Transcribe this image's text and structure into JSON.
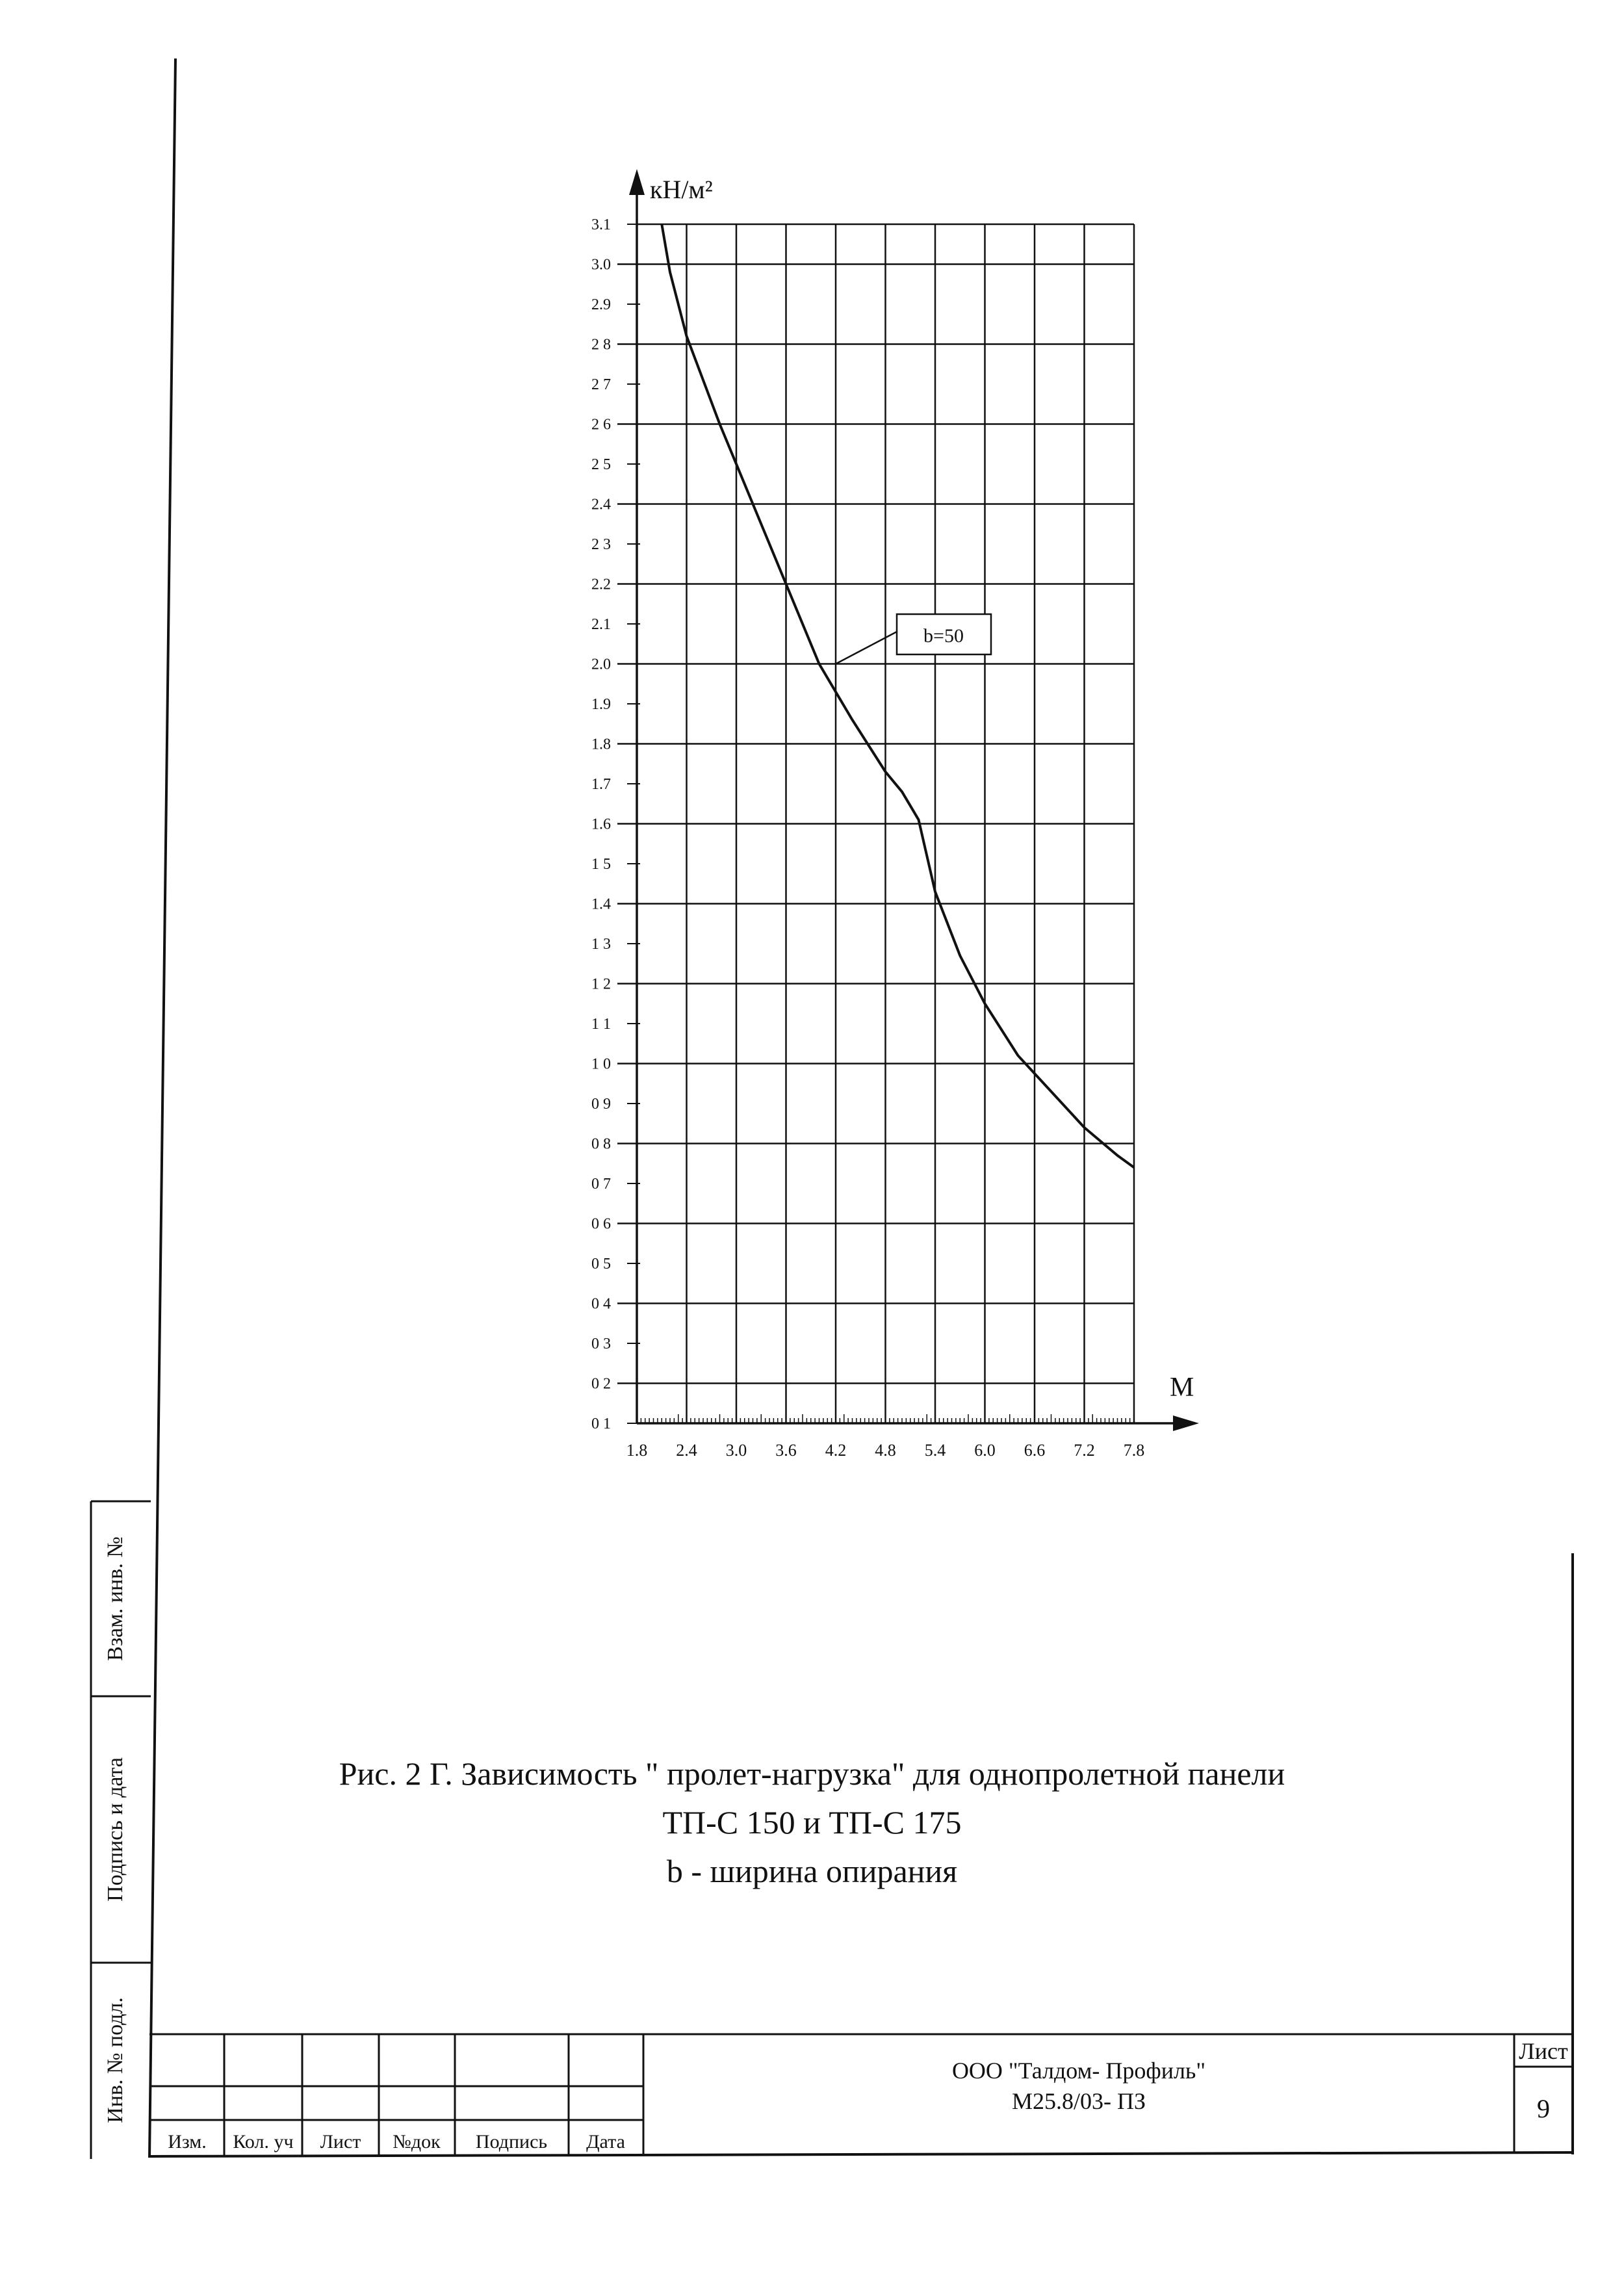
{
  "chart_data": {
    "type": "line",
    "ylabel": "кН/м²",
    "xlabel": "М",
    "xlim": [
      1.8,
      7.8
    ],
    "ylim": [
      0.1,
      3.1
    ],
    "grid": true,
    "x_ticks": [
      "1.8",
      "2.4",
      "3.0",
      "3.6",
      "4.2",
      "4.8",
      "5.4",
      "6.0",
      "6.6",
      "7.2",
      "7.8"
    ],
    "y_ticks": [
      "3.1",
      "3.0",
      "2.9",
      "2 8",
      "2 7",
      "2 6",
      "2 5",
      "2.4",
      "2 3",
      "2.2",
      "2.1",
      "2.0",
      "1.9",
      "1.8",
      "1.7",
      "1.6",
      "1 5",
      "1.4",
      "1 3",
      "1 2",
      "1 1",
      "1 0",
      "0 9",
      "0 8",
      "0 7",
      "0 6",
      "0 5",
      "0 4",
      "0 3",
      "0 2",
      "0 1"
    ],
    "series": [
      {
        "name": "b=50",
        "x": [
          2.1,
          2.2,
          2.4,
          2.8,
          3.2,
          3.6,
          4.0,
          4.4,
          4.8,
          5.0,
          5.2,
          5.4,
          5.7,
          6.0,
          6.4,
          6.8,
          7.2,
          7.6,
          7.8
        ],
        "y": [
          3.1,
          2.98,
          2.82,
          2.6,
          2.4,
          2.2,
          2.0,
          1.86,
          1.73,
          1.68,
          1.61,
          1.43,
          1.27,
          1.15,
          1.02,
          0.93,
          0.84,
          0.77,
          0.74
        ]
      }
    ]
  },
  "caption": {
    "line1": "Рис. 2 Г. Зависимость \" пролет-нагрузка\" для однопролетной панели",
    "line2": "ТП-С 150 и ТП-С 175",
    "line3": "b - ширина опирания"
  },
  "side_stamp": {
    "field1": "Взам. инв. №",
    "field2": "Подпись и дата",
    "field3": "Инв. № подл."
  },
  "title_block": {
    "headers": [
      "Изм.",
      "Кол. уч",
      "Лист",
      "№док",
      "Подпись",
      "Дата"
    ],
    "company": "ООО \"Талдом- Профиль\"",
    "doc_code": "М25.8/03- ПЗ",
    "sheet_label": "Лист",
    "sheet_number": "9"
  }
}
